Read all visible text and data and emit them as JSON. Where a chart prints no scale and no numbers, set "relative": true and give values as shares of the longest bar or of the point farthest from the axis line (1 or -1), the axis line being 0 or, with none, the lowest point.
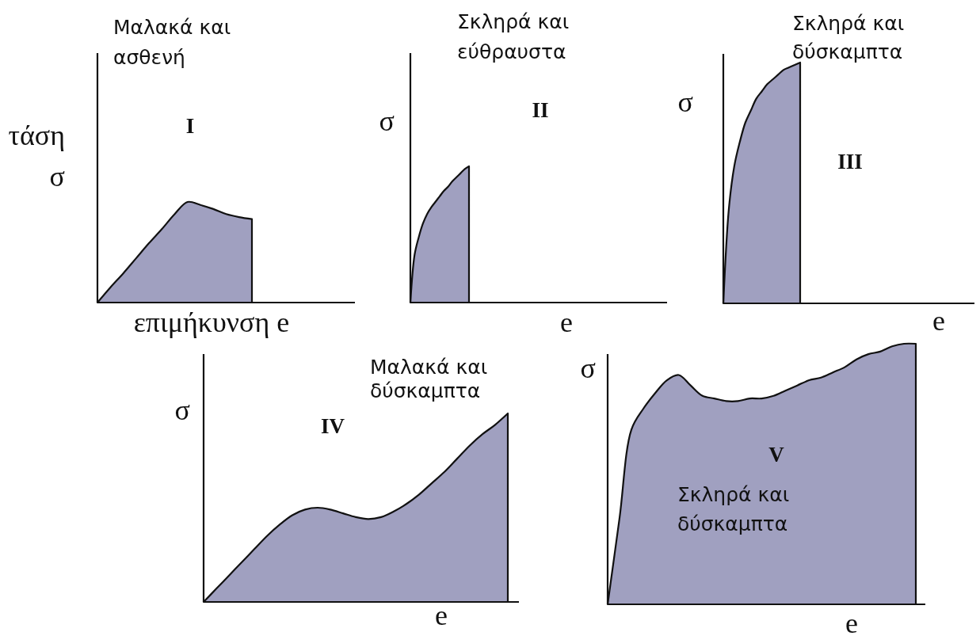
{
  "chart_data": [
    {
      "type": "area",
      "title": "Μαλακά και ασθενή",
      "ylabel": "τάση σ",
      "xlabel": "επιμήκυνση e",
      "annotations": [
        "I"
      ],
      "relative": true,
      "color": "#a0a0c0",
      "categories": [
        null,
        null,
        null,
        null,
        null,
        null,
        null,
        null,
        null,
        null,
        null,
        null,
        null
      ],
      "values": [
        0,
        0.15,
        0.29,
        0.44,
        0.59,
        0.73,
        0.88,
        1,
        0.97,
        0.93,
        0.88,
        0.85,
        0.83
      ]
    },
    {
      "type": "area",
      "title": "Σκληρά και εύθραυστα",
      "ylabel": "σ",
      "xlabel": "e",
      "annotations": [
        "II"
      ],
      "relative": true,
      "color": "#a0a0c0",
      "categories": [
        null,
        null,
        null,
        null,
        null,
        null,
        null,
        null,
        null,
        null,
        null,
        null,
        null,
        null,
        null
      ],
      "values": [
        0,
        0.35,
        0.48,
        0.58,
        0.65,
        0.7,
        0.74,
        0.78,
        0.82,
        0.85,
        0.89,
        0.92,
        0.95,
        0.98,
        1
      ]
    },
    {
      "type": "area",
      "title": "Σκληρά και δύσκαμπτα",
      "ylabel": "σ",
      "xlabel": "e",
      "annotations": [
        "III"
      ],
      "relative": true,
      "color": "#a0a0c0",
      "categories": [
        null,
        null,
        null,
        null,
        null,
        null,
        null,
        null,
        null,
        null,
        null,
        null,
        null,
        null,
        null
      ],
      "values": [
        0,
        0.39,
        0.57,
        0.67,
        0.75,
        0.8,
        0.85,
        0.88,
        0.91,
        0.93,
        0.95,
        0.97,
        0.98,
        0.99,
        1
      ]
    },
    {
      "type": "area",
      "title": "Μαλακά και δύσκαμπτα",
      "ylabel": "σ",
      "xlabel": "e",
      "annotations": [
        "IV"
      ],
      "relative": true,
      "color": "#a0a0c0",
      "categories": [
        null,
        null,
        null,
        null,
        null,
        null,
        null,
        null,
        null,
        null,
        null,
        null,
        null,
        null,
        null,
        null,
        null,
        null,
        null,
        null,
        null,
        null,
        null,
        null,
        null
      ],
      "values": [
        0,
        0.07,
        0.14,
        0.21,
        0.28,
        0.35,
        0.41,
        0.46,
        0.49,
        0.5,
        0.49,
        0.47,
        0.45,
        0.44,
        0.45,
        0.48,
        0.52,
        0.57,
        0.63,
        0.69,
        0.76,
        0.83,
        0.89,
        0.94,
        1
      ]
    },
    {
      "type": "area",
      "title": "Σκληρά και δύσκαμπτα",
      "ylabel": "σ",
      "xlabel": "e",
      "annotations": [
        "V"
      ],
      "relative": true,
      "color": "#a0a0c0",
      "categories": [
        null,
        null,
        null,
        null,
        null,
        null,
        null,
        null,
        null,
        null,
        null,
        null,
        null,
        null,
        null,
        null,
        null,
        null,
        null,
        null,
        null,
        null,
        null,
        null,
        null,
        null,
        null
      ],
      "values": [
        0,
        0.33,
        0.67,
        0.75,
        0.81,
        0.86,
        0.88,
        0.84,
        0.8,
        0.79,
        0.78,
        0.78,
        0.79,
        0.79,
        0.8,
        0.82,
        0.84,
        0.86,
        0.87,
        0.89,
        0.91,
        0.94,
        0.96,
        0.97,
        0.99,
        1,
        1
      ]
    }
  ]
}
